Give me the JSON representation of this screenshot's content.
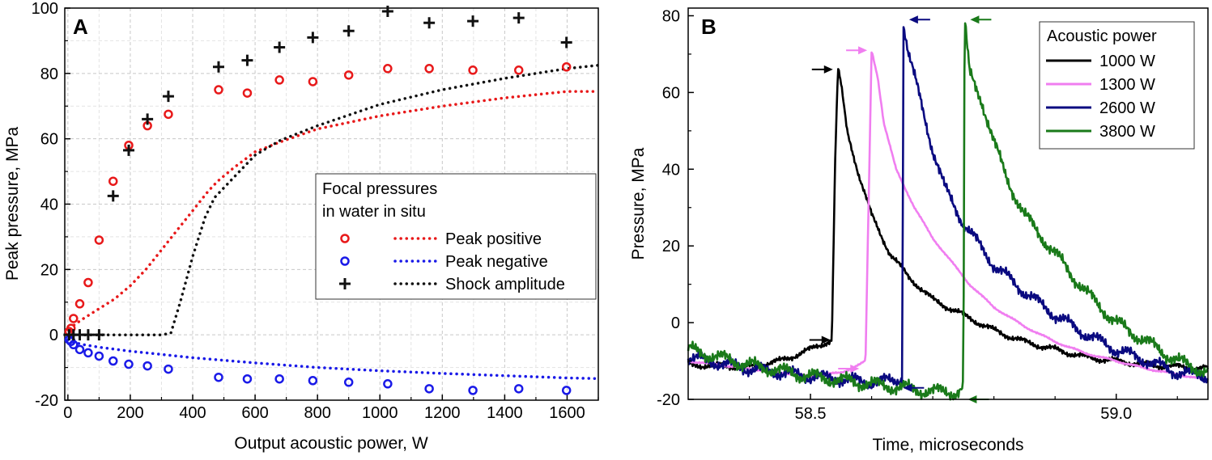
{
  "chart_data": [
    {
      "type": "scatter",
      "panel_label": "A",
      "title": "",
      "xlabel": "Output acoustic power, W",
      "ylabel": "Peak pressure, MPa",
      "xlim": [
        -10,
        1700
      ],
      "ylim": [
        -20,
        100
      ],
      "xticks": [
        0,
        200,
        400,
        600,
        800,
        1000,
        1200,
        1400,
        1600
      ],
      "yticks": [
        -20,
        0,
        20,
        40,
        60,
        80,
        100
      ],
      "grid": true,
      "legend_position": "center-right",
      "legend_title": [
        "Focal pressures",
        "in water in situ"
      ],
      "legend": [
        "Peak positive",
        "Peak negative",
        "Shock amplitude"
      ],
      "colors": {
        "positive": "#e8191a",
        "negative": "#1a1ae8",
        "shock": "#111111"
      },
      "series": [
        {
          "name": "Peak positive",
          "kind": "points",
          "marker": "circle",
          "color": "#e8191a",
          "x": [
            4,
            10,
            18,
            38,
            65,
            100,
            145,
            195,
            255,
            322,
            483,
            575,
            678,
            785,
            900,
            1025,
            1158,
            1298,
            1445,
            1598
          ],
          "y": [
            1,
            2,
            5,
            9.5,
            16,
            29,
            47,
            58,
            64,
            67.5,
            75,
            74,
            78,
            77.5,
            79.5,
            81.5,
            81.5,
            81,
            81,
            82
          ]
        },
        {
          "name": "Peak negative",
          "kind": "points",
          "marker": "circle",
          "color": "#1a1ae8",
          "x": [
            4,
            10,
            18,
            38,
            65,
            100,
            145,
            195,
            255,
            322,
            483,
            575,
            678,
            785,
            900,
            1025,
            1158,
            1298,
            1445,
            1598
          ],
          "y": [
            -1.5,
            -2,
            -3,
            -4.5,
            -5.5,
            -6.5,
            -8,
            -9,
            -9.5,
            -10.5,
            -13,
            -13.5,
            -13.5,
            -14,
            -14.5,
            -15,
            -16.5,
            -17,
            -16.5,
            -17
          ]
        },
        {
          "name": "Shock amplitude",
          "kind": "points",
          "marker": "plus",
          "color": "#111111",
          "x": [
            4,
            18,
            38,
            65,
            100,
            145,
            195,
            255,
            322,
            483,
            575,
            678,
            785,
            900,
            1025,
            1158,
            1298,
            1445,
            1598
          ],
          "y": [
            0,
            0,
            0,
            0,
            0,
            42.5,
            56.5,
            66,
            73,
            82,
            84,
            88,
            91,
            93,
            99,
            95.5,
            96,
            97,
            89.5
          ]
        },
        {
          "name": "Peak positive fit",
          "kind": "dotted",
          "color": "#e8191a",
          "x": [
            0,
            20,
            50,
            100,
            150,
            200,
            250,
            300,
            350,
            400,
            450,
            480,
            530,
            600,
            680,
            800,
            1000,
            1200,
            1400,
            1600,
            1700
          ],
          "y": [
            0,
            3,
            5,
            8,
            11,
            15,
            20,
            26,
            32,
            38,
            44,
            47,
            51,
            56,
            59,
            63,
            67,
            70,
            72.5,
            74.5,
            74.5
          ]
        },
        {
          "name": "Peak negative fit",
          "kind": "dotted",
          "color": "#1a1ae8",
          "x": [
            0,
            20,
            50,
            100,
            200,
            300,
            400,
            500,
            600,
            800,
            1000,
            1200,
            1400,
            1600,
            1700
          ],
          "y": [
            -1.5,
            -2.3,
            -3,
            -3.8,
            -5,
            -6,
            -7,
            -7.8,
            -8.6,
            -10,
            -11,
            -11.8,
            -12.5,
            -13.2,
            -13.4
          ]
        },
        {
          "name": "Shock amplitude fit",
          "kind": "dotted",
          "color": "#111111",
          "x": [
            0,
            100,
            200,
            300,
            330,
            360,
            400,
            440,
            470,
            480,
            500,
            550,
            600,
            680,
            800,
            1000,
            1200,
            1400,
            1600,
            1700
          ],
          "y": [
            0,
            0,
            0,
            0,
            0.5,
            10,
            24,
            36,
            42,
            43,
            45,
            50,
            55,
            59.5,
            64,
            70.5,
            75,
            78.5,
            81.5,
            82.5
          ]
        }
      ]
    },
    {
      "type": "line",
      "panel_label": "B",
      "title": "",
      "xlabel": "Time, microseconds",
      "ylabel": "Pressure, MPa",
      "xlim": [
        58.3,
        59.15
      ],
      "ylim": [
        -20,
        82
      ],
      "xticks": [
        58.5,
        59.0
      ],
      "xtick_labels": [
        "58.5",
        "59.0"
      ],
      "yticks": [
        -20,
        0,
        20,
        40,
        60,
        80
      ],
      "grid": false,
      "legend_position": "top-right",
      "legend_title": "Acoustic power",
      "legend": [
        "1000 W",
        "1300 W",
        "2600 W",
        "3800 W"
      ],
      "series": [
        {
          "name": "1000 W",
          "color": "#000000",
          "noise": 1.0,
          "x": [
            58.3,
            58.4,
            58.45,
            58.5,
            58.52,
            58.535,
            58.54,
            58.545,
            58.55,
            58.56,
            58.58,
            58.6,
            58.63,
            58.66,
            58.7,
            58.75,
            58.8,
            58.85,
            58.9,
            58.95,
            59.0,
            59.05,
            59.1,
            59.15
          ],
          "y": [
            -11,
            -11.5,
            -10,
            -7,
            -5.5,
            -4.5,
            40,
            66,
            62,
            50,
            38,
            28,
            18,
            12,
            6,
            2,
            -2,
            -5,
            -7,
            -9,
            -10,
            -11,
            -11.5,
            -12
          ]
        },
        {
          "name": "1300 W",
          "color": "#f07ef0",
          "noise": 0.3,
          "x": [
            58.3,
            58.4,
            58.5,
            58.55,
            58.58,
            58.59,
            58.6,
            58.61,
            58.62,
            58.64,
            58.67,
            58.7,
            58.73,
            58.76,
            58.8,
            58.85,
            58.9,
            58.95,
            59.0,
            59.05,
            59.1,
            59.15
          ],
          "y": [
            -10,
            -12,
            -14,
            -13,
            -11,
            -10,
            71,
            64,
            52,
            40,
            30,
            22,
            16,
            10,
            4,
            -1,
            -5,
            -8,
            -10,
            -12,
            -13.5,
            -15
          ]
        },
        {
          "name": "2600 W",
          "color": "#0a0a80",
          "noise": 2.0,
          "x": [
            58.3,
            58.4,
            58.5,
            58.6,
            58.64,
            58.65,
            58.652,
            58.66,
            58.68,
            58.7,
            58.72,
            58.75,
            58.8,
            58.85,
            58.9,
            58.95,
            59.0,
            59.05,
            59.1,
            59.15
          ],
          "y": [
            -9,
            -12,
            -14,
            -15.5,
            -15,
            -14,
            78,
            70,
            58,
            45,
            35,
            26,
            15,
            8,
            2,
            -3,
            -7,
            -10,
            -13,
            -14
          ]
        },
        {
          "name": "3800 W",
          "color": "#1a7a1a",
          "noise": 2.2,
          "x": [
            58.3,
            58.4,
            58.5,
            58.6,
            58.7,
            58.74,
            58.75,
            58.752,
            58.76,
            58.78,
            58.8,
            58.82,
            58.85,
            58.9,
            58.95,
            59.0,
            59.05,
            59.1,
            59.15
          ],
          "y": [
            -7,
            -11,
            -14,
            -16,
            -18,
            -18,
            -17,
            79,
            65,
            58,
            47,
            38,
            28,
            18,
            8,
            0,
            -5,
            -10,
            -13
          ]
        }
      ],
      "arrows": [
        {
          "series": "1000 W",
          "at": [
            58.542,
            66
          ],
          "direction": "right"
        },
        {
          "series": "1000 W",
          "at": [
            58.538,
            -4.5
          ],
          "direction": "right"
        },
        {
          "series": "1300 W",
          "at": [
            58.598,
            71
          ],
          "direction": "right"
        },
        {
          "series": "1300 W",
          "at": [
            58.585,
            -12
          ],
          "direction": "right"
        },
        {
          "series": "2600 W",
          "at": [
            58.656,
            79
          ],
          "direction": "left"
        },
        {
          "series": "2600 W",
          "at": [
            58.646,
            -17
          ],
          "direction": "left"
        },
        {
          "series": "3800 W",
          "at": [
            58.756,
            79
          ],
          "direction": "left"
        },
        {
          "series": "3800 W",
          "at": [
            58.752,
            -20
          ],
          "direction": "left"
        }
      ]
    }
  ]
}
